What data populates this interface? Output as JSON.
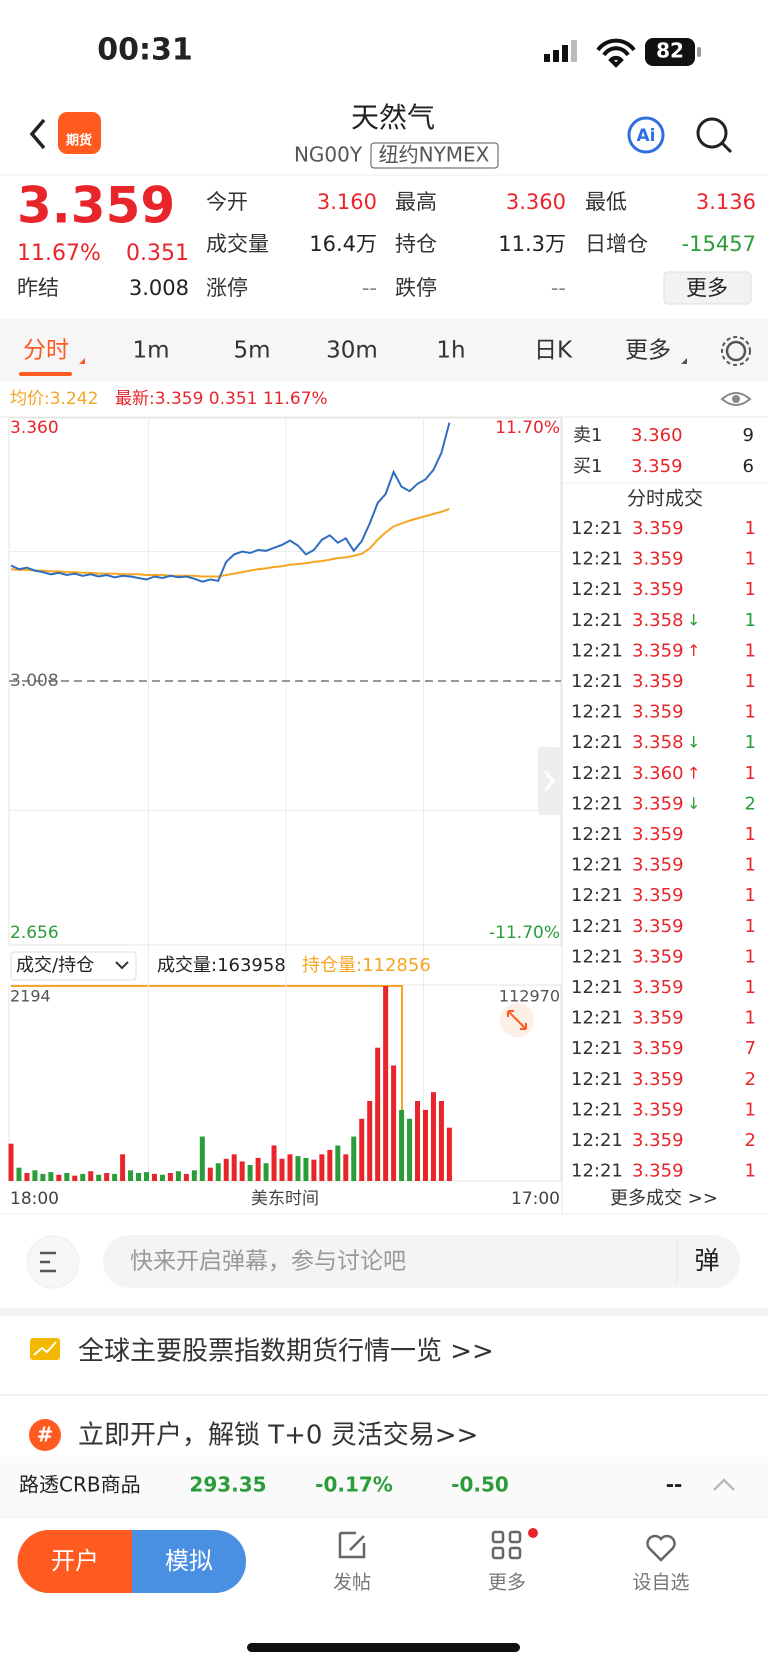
{
  "status": {
    "time": "00:31",
    "battery": "82"
  },
  "header": {
    "badge": "期货",
    "title": "天然气",
    "code": "NG00Y",
    "exchange": "纽约NYMEX",
    "ai": "Ai"
  },
  "quote": {
    "price": "3.359",
    "change_pct": "11.67%",
    "change": "0.351",
    "prev_settle_label": "昨结",
    "prev_settle": "3.008",
    "fields": [
      {
        "label": "今开",
        "value": "3.160"
      },
      {
        "label": "最高",
        "value": "3.360"
      },
      {
        "label": "最低",
        "value": "3.136"
      },
      {
        "label": "成交量",
        "value": "16.4万"
      },
      {
        "label": "持仓",
        "value": "11.3万"
      },
      {
        "label": "日增仓",
        "value": "-15457"
      },
      {
        "label": "涨停",
        "value": "--"
      },
      {
        "label": "跌停",
        "value": "--"
      }
    ],
    "more": "更多"
  },
  "tabs": [
    "分时",
    "1m",
    "5m",
    "30m",
    "1h",
    "日K",
    "更多"
  ],
  "chart_data": {
    "type": "line",
    "avg_label": "均价:3.242",
    "latest_label": "最新:3.359 0.351 11.67%",
    "x": [
      0,
      20,
      40,
      60,
      80,
      100,
      120,
      140,
      160,
      180,
      200,
      220,
      240,
      260,
      280,
      300,
      320,
      340,
      360,
      380,
      400,
      420,
      440,
      460,
      480,
      500,
      520,
      540,
      560,
      580,
      600,
      620,
      640,
      660,
      680,
      700,
      720,
      740,
      760,
      780,
      800,
      820,
      840,
      860,
      880,
      900,
      920,
      940,
      960,
      980,
      1000,
      1020,
      1040,
      1060,
      1080,
      1100
    ],
    "xlim": [
      0,
      1380
    ],
    "xticks": [
      {
        "value": 0,
        "label": "18:00"
      },
      {
        "value": 1380,
        "label": "17:00"
      }
    ],
    "xlabel": "美东时间",
    "xgrid": [
      345,
      690,
      1035
    ],
    "ylim": [
      2.656,
      3.36
    ],
    "yticks": [
      {
        "value": 3.36,
        "label": "3.360"
      },
      3.008,
      2.656
    ],
    "ygrid": [
      3.184,
      2.832
    ],
    "y2lim": [
      -11.7,
      11.7
    ],
    "y2ticks": [
      {
        "value": 11.7,
        "label": "11.70%"
      },
      {
        "value": -11.7,
        "label": "-11.70%"
      }
    ],
    "series": [
      {
        "color": "#2f6fbf",
        "values": [
          3.165,
          3.16,
          3.162,
          3.158,
          3.156,
          3.153,
          3.155,
          3.152,
          3.154,
          3.151,
          3.153,
          3.15,
          3.152,
          3.149,
          3.151,
          3.15,
          3.148,
          3.146,
          3.15,
          3.148,
          3.151,
          3.149,
          3.15,
          3.147,
          3.143,
          3.146,
          3.144,
          3.17,
          3.18,
          3.184,
          3.182,
          3.186,
          3.185,
          3.189,
          3.193,
          3.199,
          3.192,
          3.18,
          3.186,
          3.2,
          3.206,
          3.196,
          3.202,
          3.185,
          3.198,
          3.222,
          3.25,
          3.262,
          3.292,
          3.272,
          3.266,
          3.276,
          3.282,
          3.295,
          3.318,
          3.359
        ]
      },
      {
        "color": "#f5a623",
        "values": [
          3.16,
          3.159,
          3.159,
          3.158,
          3.158,
          3.157,
          3.157,
          3.156,
          3.156,
          3.155,
          3.155,
          3.154,
          3.154,
          3.154,
          3.153,
          3.153,
          3.153,
          3.152,
          3.152,
          3.152,
          3.151,
          3.151,
          3.151,
          3.151,
          3.15,
          3.15,
          3.15,
          3.152,
          3.154,
          3.156,
          3.158,
          3.16,
          3.161,
          3.163,
          3.164,
          3.166,
          3.167,
          3.168,
          3.17,
          3.171,
          3.173,
          3.175,
          3.176,
          3.178,
          3.181,
          3.188,
          3.2,
          3.21,
          3.218,
          3.222,
          3.226,
          3.229,
          3.232,
          3.235,
          3.238,
          3.242
        ]
      }
    ],
    "volume": {
      "selector": "成交/持仓",
      "volume_label": "成交量:163958",
      "oi_label": "持仓量:112856",
      "ylim": [
        0,
        2194
      ],
      "yticks": [
        2194
      ],
      "y2ticks": [
        112970
      ],
      "values": [
        420,
        150,
        90,
        120,
        80,
        100,
        70,
        90,
        60,
        80,
        110,
        70,
        90,
        80,
        300,
        120,
        90,
        100,
        80,
        70,
        90,
        110,
        80,
        120,
        500,
        150,
        200,
        250,
        300,
        220,
        180,
        260,
        200,
        400,
        250,
        300,
        280,
        260,
        240,
        300,
        350,
        400,
        300,
        500,
        700,
        900,
        1500,
        2194,
        1300,
        800,
        700,
        900,
        800,
        1000,
        900,
        600
      ]
    }
  },
  "order_book": [
    {
      "side": "卖1",
      "price": "3.360",
      "qty": "9"
    },
    {
      "side": "买1",
      "price": "3.359",
      "qty": "6"
    }
  ],
  "trades": {
    "title": "分时成交",
    "rows": [
      {
        "time": "12:21",
        "price": "3.359",
        "qty": "1"
      },
      {
        "time": "12:21",
        "price": "3.359",
        "qty": "1"
      },
      {
        "time": "12:21",
        "price": "3.359",
        "qty": "1"
      },
      {
        "time": "12:21",
        "price": "3.358",
        "dir": "↓",
        "qty": "1"
      },
      {
        "time": "12:21",
        "price": "3.359",
        "dir": "↑",
        "qty": "1"
      },
      {
        "time": "12:21",
        "price": "3.359",
        "qty": "1"
      },
      {
        "time": "12:21",
        "price": "3.359",
        "qty": "1"
      },
      {
        "time": "12:21",
        "price": "3.358",
        "dir": "↓",
        "qty": "1"
      },
      {
        "time": "12:21",
        "price": "3.360",
        "dir": "↑",
        "qty": "1"
      },
      {
        "time": "12:21",
        "price": "3.359",
        "dir": "↓",
        "qty": "2"
      },
      {
        "time": "12:21",
        "price": "3.359",
        "qty": "1"
      },
      {
        "time": "12:21",
        "price": "3.359",
        "qty": "1"
      },
      {
        "time": "12:21",
        "price": "3.359",
        "qty": "1"
      },
      {
        "time": "12:21",
        "price": "3.359",
        "qty": "1"
      },
      {
        "time": "12:21",
        "price": "3.359",
        "qty": "1"
      },
      {
        "time": "12:21",
        "price": "3.359",
        "qty": "1"
      },
      {
        "time": "12:21",
        "price": "3.359",
        "qty": "1"
      },
      {
        "time": "12:21",
        "price": "3.359",
        "qty": "7"
      },
      {
        "time": "12:21",
        "price": "3.359",
        "qty": "2"
      },
      {
        "time": "12:21",
        "price": "3.359",
        "qty": "1"
      },
      {
        "time": "12:21",
        "price": "3.359",
        "qty": "2"
      },
      {
        "time": "12:21",
        "price": "3.359",
        "qty": "1"
      }
    ],
    "more": "更多成交 >>"
  },
  "comment": {
    "placeholder": "快来开启弹幕，参与讨论吧",
    "button": "弹"
  },
  "banners": [
    "全球主要股票指数期货行情一览 >>",
    "立即开户，解锁 T+0 灵活交易>>"
  ],
  "ticker": {
    "name": "路透CRB商品",
    "value": "293.35",
    "pct": "-0.17%",
    "change": "-0.50",
    "extra": "--"
  },
  "bottom": {
    "open": "开户",
    "demo": "模拟",
    "nav": [
      "发帖",
      "更多",
      "设自选"
    ]
  }
}
